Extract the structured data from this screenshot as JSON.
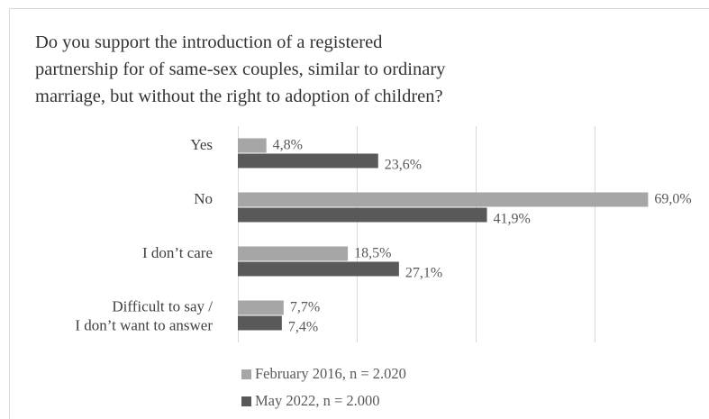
{
  "chart_data": {
    "type": "bar",
    "orientation": "horizontal",
    "title_lines": [
      "Do you support the introduction of a registered",
      "partnership for of same-sex couples, similar to ordinary",
      "marriage, but without the right to adoption of children?"
    ],
    "categories": [
      [
        "Yes"
      ],
      [
        "No"
      ],
      [
        "I don’t care"
      ],
      [
        "Difficult to say /",
        "I don’t want to answer"
      ]
    ],
    "series": [
      {
        "name": "February 2016, n = 2.020",
        "color": "#a6a6a6",
        "values": [
          4.8,
          69.0,
          18.5,
          7.7
        ],
        "labels": [
          "4,8%",
          "69,0%",
          "18,5%",
          "7,7%"
        ]
      },
      {
        "name": "May 2022, n = 2.000",
        "color": "#595959",
        "values": [
          23.6,
          41.9,
          27.1,
          7.4
        ],
        "labels": [
          "23,6%",
          "41,9%",
          "27,1%",
          "7,4%"
        ]
      }
    ],
    "xlim": [
      0,
      80
    ],
    "gridlines": [
      0,
      20,
      40,
      60,
      80
    ],
    "grid": true,
    "legend_position": "bottom",
    "gridline_color": "#d9d9d9"
  }
}
